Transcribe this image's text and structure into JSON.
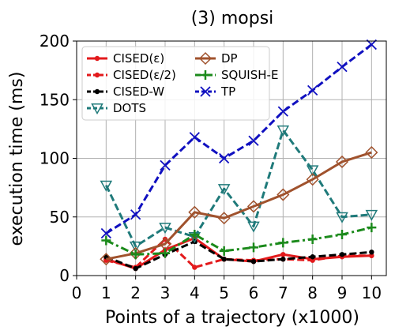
{
  "chart_data": {
    "type": "line",
    "title": "(3) mopsi",
    "xlabel": "Points of a trajectory (x1000)",
    "ylabel": "execution time (ms)",
    "xlim": [
      0,
      10.5
    ],
    "ylim": [
      0,
      200
    ],
    "xticks": [
      0,
      1,
      2,
      3,
      4,
      5,
      6,
      7,
      8,
      9,
      10
    ],
    "yticks": [
      0,
      50,
      100,
      150,
      200
    ],
    "grid": true,
    "legend_position": "top-left",
    "legend_columns": 2,
    "x": [
      1,
      2,
      3,
      4,
      5,
      6,
      7,
      8,
      9,
      10
    ],
    "series": [
      {
        "name": "CISED(ε)",
        "color": "#e31a1c",
        "dash": "solid",
        "marker": "dot",
        "width": 3,
        "values": [
          14,
          6,
          22,
          32,
          14,
          12,
          18,
          14,
          16,
          17
        ]
      },
      {
        "name": "CISED(ε/2)",
        "color": "#e31a1c",
        "dash": "dashed",
        "marker": "dot",
        "width": 3,
        "values": [
          13,
          7,
          31,
          7,
          14,
          13,
          14,
          13,
          17,
          17
        ]
      },
      {
        "name": "CISED-W",
        "color": "#000000",
        "dash": "dashed",
        "marker": "dot",
        "width": 3,
        "values": [
          16,
          6,
          18,
          29,
          14,
          12,
          14,
          16,
          18,
          20
        ]
      },
      {
        "name": "DOTS",
        "color": "#1f7a7a",
        "dash": "dashed",
        "marker": "triangle-down",
        "width": 3,
        "values": [
          77,
          25,
          41,
          33,
          74,
          42,
          124,
          90,
          50,
          52
        ]
      },
      {
        "name": "DP",
        "color": "#a0522d",
        "dash": "solid",
        "marker": "diamond",
        "width": 3,
        "values": [
          14,
          19,
          27,
          54,
          49,
          59,
          69,
          82,
          97,
          105
        ]
      },
      {
        "name": "SQUISH-E",
        "color": "#1b8a1b",
        "dash": "dashdot",
        "marker": "plus",
        "width": 3,
        "values": [
          30,
          18,
          19,
          35,
          21,
          24,
          28,
          31,
          35,
          41
        ]
      },
      {
        "name": "TP",
        "color": "#1010c0",
        "dash": "dashed",
        "marker": "x",
        "width": 3,
        "values": [
          36,
          52,
          94,
          118,
          100,
          115,
          140,
          158,
          178,
          197
        ]
      }
    ]
  }
}
